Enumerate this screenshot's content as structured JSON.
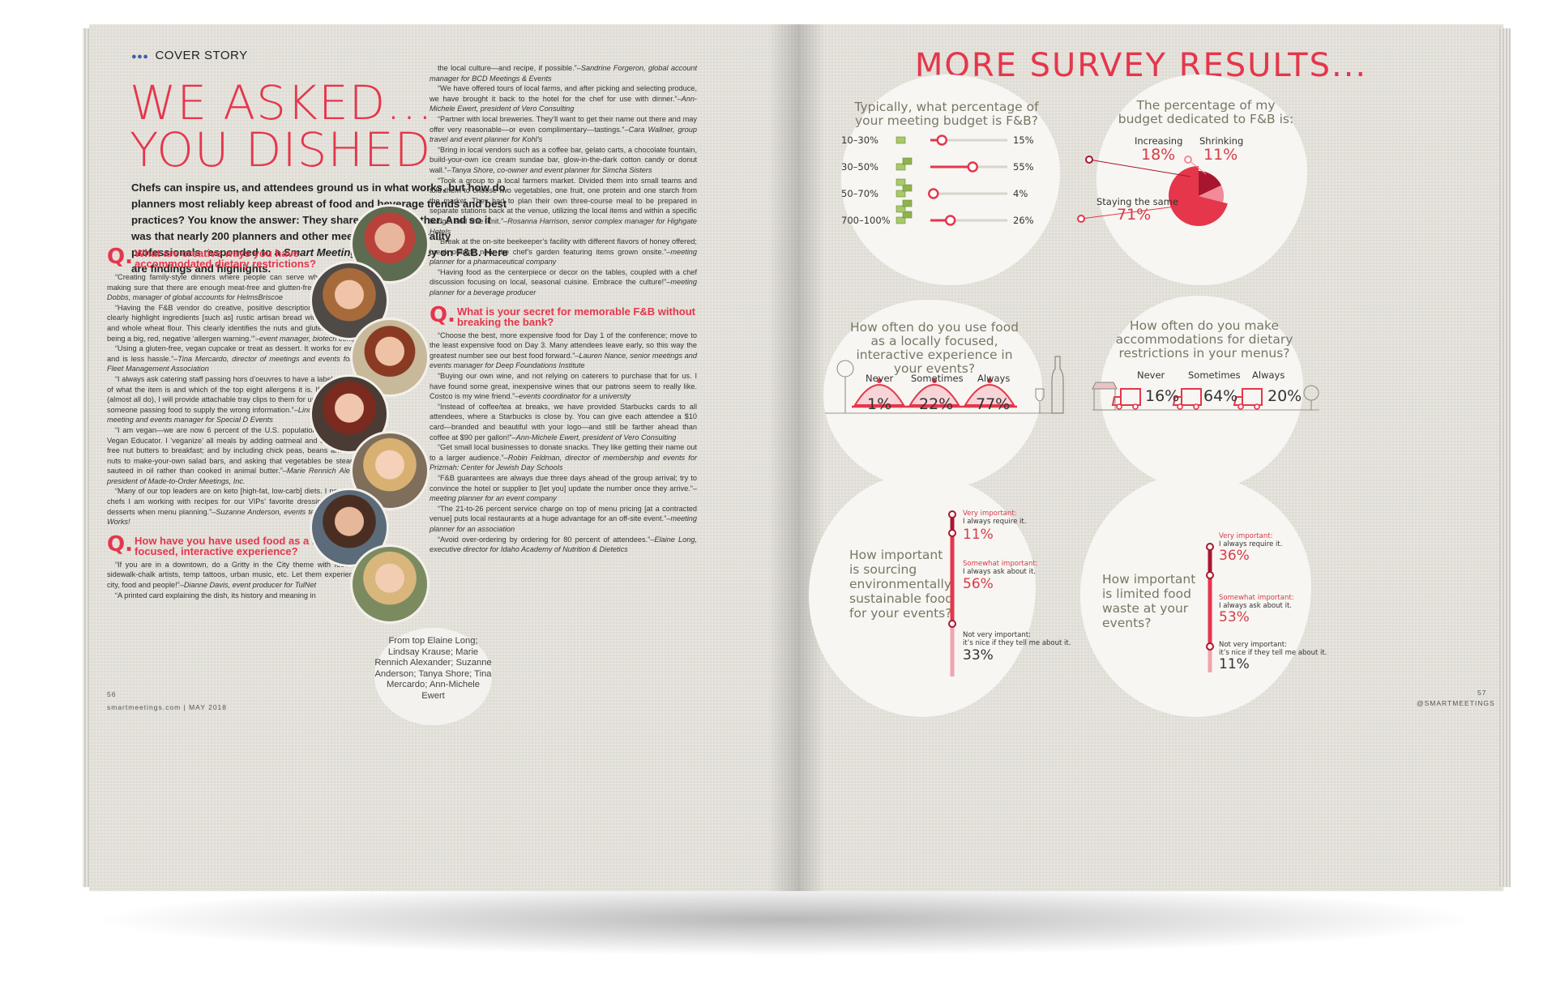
{
  "left_page": {
    "kicker": "COVER STORY",
    "title_line1": "WE ASKED...",
    "title_line2": "YOU DISHED",
    "intro_a": "Chefs can inspire us, and attendees ground us in what works, but how do planners most reliably keep abreast of food and beverage trends and best practices? You know the answer: They share with each other. And so it was that nearly 200 planners and other meeting and hospitality professionals responded to a ",
    "intro_em": "Smart Meetings",
    "intro_b": "’ online survey on F&B. Here are findings and highlights.",
    "q1": "What are creative ways you have accommodated dietary restrictions?",
    "col1_a": [
      {
        "text": "“Creating family-style dinners where people can serve what they can eat, making sure that there are enough meat-free and glutten-free options.”",
        "attr": "–Rachel Dobbs, manager of global accounts for HelmsBriscoe"
      },
      {
        "text": "“Having the F&B vendor do creative, positive descriptions of the food that clearly highlight ingredients [such as] rustic artisan bread with toasted walnuts and whole wheat flour. This clearly identifies the nuts and gluten, without there being a big, red, negative ‘allergen warning.’”",
        "attr": "–event manager, biotech company"
      },
      {
        "text": "“Using a gluten-free, vegan cupcake or treat as dessert. It works for everyone and is less hassle.”",
        "attr": "–Tina Mercardo, director of meetings and events for NAFA Fleet Management Association"
      },
      {
        "text": "“I always ask catering staff passing hors d’oeuvres to have a label on their tray of what the item is and which of the top eight allergens it is. If they push back (almost all do), I will provide attachable tray clips to them for use. It’s too easy for someone passing food to supply the wrong information.”",
        "attr": "–Lindsay Krause, senior meeting and events manager for Special D Events"
      },
      {
        "text": "“I am vegan—we are now 6 percent of the U.S. population—and a Certified Vegan Educator. I ‘veganize’ all meals by adding oatmeal and unsalted, sugar-free nut butters to breakfast; and by including chick peas, beans and unsalted nuts to make-your-own salad bars, and asking that vegetables be steamed or sauteed in oil rather than cooked in animal butter.”",
        "attr": "–Marie Rennich Alexander, president of Made-to-Order Meetings, Inc."
      },
      {
        "text": "“Many of our top leaders are on keto [high-fat, low-carb] diets. I now send the chefs I am working with recipes for our VIPs’ favorite dressings, sauces and desserts when menu planning.”",
        "attr": "–Suzanne Anderson, events team manager for It Works!"
      }
    ],
    "q2": "How have you have used food as a locally focused, interactive experience?",
    "col1_b": [
      {
        "text": "“If you are in a downtown, do a Gritty in the City theme with food trucks, sidewalk-chalk artists, temp tattoos, urban music, etc. Let them experience the city, food and people!”",
        "attr": "–Dianne Davis, event producer for TulNet"
      },
      {
        "text": "“A printed card explaining the dish, its history and meaning in",
        "attr": ""
      }
    ],
    "col2_a": [
      {
        "text": "the local culture—and recipe, if possible.”",
        "attr": "–Sandrine Forgeron, global account manager for BCD Meetings & Events"
      },
      {
        "text": "“We have offered tours of local farms, and after picking and selecting produce, we have brought it back to the hotel for the chef for use with dinner.”",
        "attr": "–Ann-Michele Ewert, president of Vero Consulting"
      },
      {
        "text": "“Partner with local breweries. They’ll want to get their name out there and may offer very reasonable—or even complimentary—tastings.”",
        "attr": "–Cara Wallner, group travel and event planner for Kohl’s"
      },
      {
        "text": "“Bring in local vendors such as a coffee bar, gelato carts, a chocolate fountain, build-your-own ice cream sundae bar, glow-in-the-dark cotton candy or donut wall.”",
        "attr": "–Tanya Shore, co-owner and event planner for Simcha Sisters"
      },
      {
        "text": "“Took a group to a local farmers market. Divided them into small teams and told them to choose two vegetables, one fruit, one protein and one starch from the market. They had to plan their own three-course meal to be prepared in separate stations back at the venue, utilizing the local items and within a specific budget and time limit.”",
        "attr": "–Rosanna Harrison, senior complex manager for Highgate Hotels"
      },
      {
        "text": "“Break at the on-site beekeeper’s facility with different flavors of honey offered; break outside near the chef’s garden featuring items grown onsite.”",
        "attr": "–meeting planner for a pharmaceutical company"
      },
      {
        "text": "“Having food as the centerpiece or decor on the tables, coupled with a chef discussion focusing on local, seasonal cuisine. Embrace the culture!”",
        "attr": "–meeting planner for a beverage producer"
      }
    ],
    "q3": "What is your secret for memorable F&B without breaking the bank?",
    "col2_b": [
      {
        "text": "“Choose the best, more expensive food for Day 1 of the conference; move to the least expensive food on Day 3. Many attendees leave early, so this way the greatest number see our best food forward.”",
        "attr": "–Lauren Nance, senior meetings and events manager for Deep Foundations Institute"
      },
      {
        "text": "“Buying our own wine, and not relying on caterers to purchase that for us. I have found some great, inexpensive wines that our patrons seem to really like. Costco is my wine friend.”",
        "attr": "–events coordinator for a university"
      },
      {
        "text": "“Instead of coffee/tea at breaks, we have provided Starbucks cards to all attendees, where a Starbucks is close by. You can give each attendee a $10 card—branded and beautiful with your logo—and still be farther ahead than coffee at $90 per gallon!”",
        "attr": "–Ann-Michele Ewert, president of Vero Consulting"
      },
      {
        "text": "“Get small local businesses to donate snacks. They like getting their name out to a larger audience.”",
        "attr": "–Robin Feldman, director of membership and events for Prizmah: Center for Jewish Day Schools"
      },
      {
        "text": "“F&B guarantees are always due three days ahead of the group arrival; try to convince the hotel or supplier to [let you] update the number once they arrive.”",
        "attr": "–meeting planner for an event company"
      },
      {
        "text": "“The 21-to-26 percent service charge on top of menu pricing [at a contracted venue] puts local restaurants at a huge advantage for an off-site event.”",
        "attr": "–meeting planner for an association"
      },
      {
        "text": "“Avoid over-ordering by ordering for 80 percent of attendees.”",
        "attr": "–Elaine Long, executive director for Idaho Academy of Nutrition & Dietetics"
      }
    ],
    "caption": "From top Elaine Long; Lindsay Krause; Marie Rennich Alexander; Suzanne Anderson; Tanya Shore; Tina Mercardo; Ann-Michele Ewert",
    "page_number": "56",
    "footer": "smartmeetings.com | MAY 2018"
  },
  "right_page": {
    "title": "MORE SURVEY RESULTS...",
    "page_number": "57",
    "footer": "@SMARTMEETINGS",
    "budget": {
      "question": "Typically, what percentage of your meeting budget is F&B?",
      "rows": [
        {
          "label": "10–30%",
          "value": 15,
          "display": "15%"
        },
        {
          "label": "30–50%",
          "value": 55,
          "display": "55%"
        },
        {
          "label": "50–70%",
          "value": 4,
          "display": "4%"
        },
        {
          "label": "700–100%",
          "value": 26,
          "display": "26%"
        }
      ]
    },
    "share": {
      "question": "The percentage of my budget dedicated to F&B is:",
      "slices": [
        {
          "label": "Increasing",
          "display": "18%",
          "value": 18,
          "color": "#a8162d"
        },
        {
          "label": "Shrinking",
          "display": "11%",
          "value": 11,
          "color": "#f28a97"
        },
        {
          "label": "Staying the same",
          "display": "71%",
          "value": 71,
          "color": "#e5364c"
        }
      ]
    },
    "local_food": {
      "question": "How often do you use food as a locally focused, interactive experience in your events?",
      "items": [
        {
          "label": "Never",
          "display": "1%"
        },
        {
          "label": "Sometimes",
          "display": "22%"
        },
        {
          "label": "Always",
          "display": "77%"
        }
      ]
    },
    "dietary": {
      "question": "How often do you make accommodations for dietary restrictions in your menus?",
      "items": [
        {
          "label": "Never",
          "display": "16%"
        },
        {
          "label": "Sometimes",
          "display": "64%"
        },
        {
          "label": "Always",
          "display": "20%"
        }
      ]
    },
    "sustainable": {
      "question": "How important is sourcing environmentally sustainable food for your events?",
      "levels": [
        {
          "key": "Very important:",
          "desc": "I always require it.",
          "display": "11%"
        },
        {
          "key": "Somewhat important:",
          "desc": "I always ask about it.",
          "display": "56%"
        },
        {
          "key": "Not very important:",
          "desc": "it’s nice if they tell me about it.",
          "display": "33%"
        }
      ]
    },
    "waste": {
      "question": "How important is limited food waste at your events?",
      "levels": [
        {
          "key": "Very important:",
          "desc": "I always require it.",
          "display": "36%"
        },
        {
          "key": "Somewhat important:",
          "desc": "I always ask about it.",
          "display": "53%"
        },
        {
          "key": "Not very important:",
          "desc": "it’s nice if they tell me about it.",
          "display": "11%"
        }
      ]
    },
    "colors": {
      "accent": "#e5364c",
      "dark_accent": "#a8162d",
      "light_accent": "#f28a97",
      "question_text": "#7a7666"
    }
  }
}
